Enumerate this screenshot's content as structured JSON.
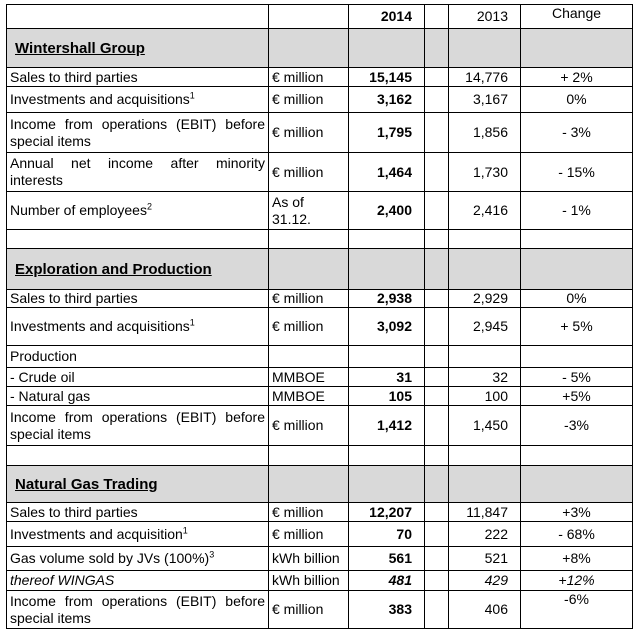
{
  "header": {
    "year_current": "2014",
    "year_prior": "2013",
    "change": "Change"
  },
  "sections": [
    {
      "title": "Wintershall Group",
      "rows": [
        {
          "label": "Sales to third parties",
          "unit": "€ million",
          "v2014": "15,145",
          "v2013": "14,776",
          "change": "+ 2%"
        },
        {
          "label": "Investments and acquisitions",
          "sup": "1",
          "unit": "€ million",
          "v2014": "3,162",
          "v2013": "3,167",
          "change": "0%"
        },
        {
          "label": "Income from operations (EBIT) before special items",
          "unit": "€ million",
          "v2014": "1,795",
          "v2013": "1,856",
          "change": "- 3%"
        },
        {
          "label": "Annual net income after minority interests",
          "unit": "€ million",
          "v2014": "1,464",
          "v2013": "1,730",
          "change": "- 15%"
        },
        {
          "label": "Number of employees",
          "sup": "2",
          "unit": "As of 31.12.",
          "v2014": "2,400",
          "v2013": "2,416",
          "change": "- 1%"
        }
      ]
    },
    {
      "title": "Exploration and Production",
      "rows": [
        {
          "label": "Sales to third parties",
          "unit": "€ million",
          "v2014": "2,938",
          "v2013": "2,929",
          "change": "0%"
        },
        {
          "label": "Investments and acquisitions",
          "sup": "1",
          "unit": "€ million",
          "v2014": "3,092",
          "v2013": "2,945",
          "change": "+ 5%"
        },
        {
          "label": "Production",
          "unit": "",
          "v2014": "",
          "v2013": "",
          "change": ""
        },
        {
          "label": "- Crude oil",
          "unit": "MMBOE",
          "v2014": "31",
          "v2013": "32",
          "change": "- 5%"
        },
        {
          "label": "- Natural gas",
          "unit": "MMBOE",
          "v2014": "105",
          "v2013": "100",
          "change": "+5%"
        },
        {
          "label": "Income from operations (EBIT) before special items",
          "unit": "€ million",
          "v2014": "1,412",
          "v2013": "1,450",
          "change": "-3%"
        }
      ]
    },
    {
      "title": "Natural Gas Trading",
      "rows": [
        {
          "label": "Sales to third parties",
          "unit": "€ million",
          "v2014": "12,207",
          "v2013": "11,847",
          "change": "+3%"
        },
        {
          "label": "Investments and acquisition",
          "sup": "1",
          "unit": "€ million",
          "v2014": "70",
          "v2013": "222",
          "change": "- 68%"
        },
        {
          "label": "Gas volume sold by JVs (100%)",
          "sup": "3",
          "unit": "kWh billion",
          "v2014": "561",
          "v2013": "521",
          "change": "+8%"
        },
        {
          "label": "thereof WINGAS",
          "italic": true,
          "unit": "kWh billion",
          "v2014": "481",
          "v2013": "429",
          "change": "+12%"
        },
        {
          "label": "Income from operations (EBIT) before special items",
          "unit": "€ million",
          "v2014": "383",
          "v2013": "406",
          "change": "-6%"
        }
      ]
    }
  ]
}
